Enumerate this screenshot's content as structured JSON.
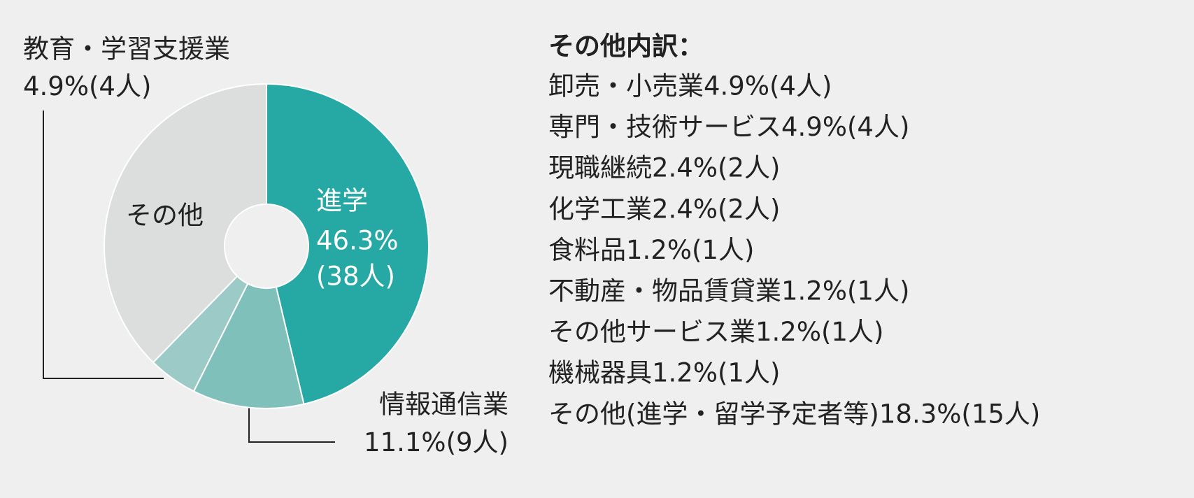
{
  "chart_data": {
    "type": "donut",
    "categories": [
      "進学",
      "情報通信業",
      "教育・学習支援業",
      "その他"
    ],
    "values": [
      46.3,
      11.1,
      4.9,
      37.7
    ],
    "value_labels": [
      "46.3%",
      "11.1%",
      "4.9%",
      null
    ],
    "count_labels": [
      "(38人)",
      "(9人)",
      "(4人)",
      null
    ],
    "colors": [
      "#26a8a5",
      "#7fc0bb",
      "#9ccac6",
      "#dcdddd"
    ]
  },
  "breakdown": {
    "title": "その他内訳：",
    "items": [
      "卸売・小売業4.9%(4人)",
      "専門・技術サービス4.9%(4人)",
      "現職継続2.4%(2人)",
      "化学工業2.4%(2人)",
      "食料品1.2%(1人)",
      "不動産・物品賃貸業1.2%(1人)",
      "その他サービス業1.2%(1人)",
      "機械器具1.2%(1人)",
      "その他(進学・留学予定者等)18.3%(15人)"
    ]
  }
}
